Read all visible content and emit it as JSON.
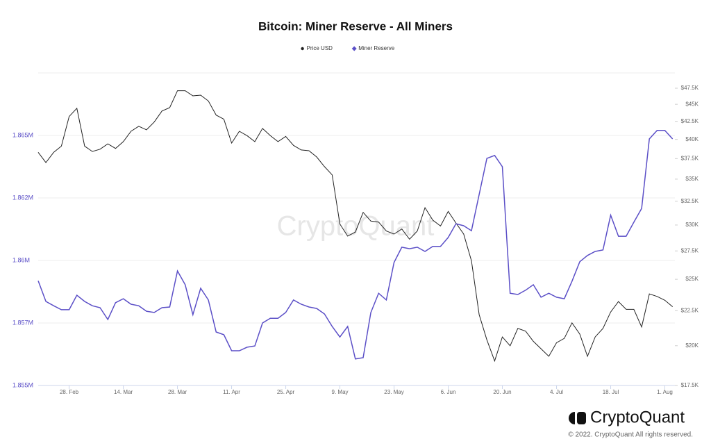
{
  "chart_data": {
    "type": "line",
    "title": "Bitcoin: Miner Reserve - All Miners",
    "categories": [
      null,
      null,
      null,
      null,
      "28. Feb",
      null,
      null,
      null,
      null,
      null,
      null,
      "14. Mar",
      null,
      null,
      null,
      null,
      null,
      null,
      "28. Mar",
      null,
      null,
      null,
      null,
      null,
      null,
      "11. Apr",
      null,
      null,
      null,
      null,
      null,
      null,
      "25. Apr",
      null,
      null,
      null,
      null,
      null,
      null,
      "9. May",
      null,
      null,
      null,
      null,
      null,
      null,
      "23. May",
      null,
      null,
      null,
      null,
      null,
      null,
      "6. Jun",
      null,
      null,
      null,
      null,
      null,
      null,
      "20. Jun",
      null,
      null,
      null,
      null,
      null,
      null,
      "4. Jul",
      null,
      null,
      null,
      null,
      null,
      null,
      "18. Jul",
      null,
      null,
      null,
      null,
      null,
      null,
      "1. Aug",
      null
    ],
    "series": [
      {
        "name": "Price USD",
        "color": "#222222",
        "axis": "y2",
        "marker": "dot",
        "values": [
          38300,
          37000,
          38300,
          39100,
          43200,
          44400,
          39100,
          38400,
          38700,
          39400,
          38800,
          39700,
          41100,
          41800,
          41300,
          42400,
          44000,
          44500,
          47100,
          47100,
          46300,
          46400,
          45500,
          43400,
          42800,
          39500,
          41100,
          40500,
          39700,
          41500,
          40500,
          39700,
          40400,
          39200,
          38600,
          38500,
          37700,
          36500,
          35500,
          30100,
          28900,
          29300,
          31300,
          30400,
          30300,
          29400,
          29100,
          29600,
          28600,
          29400,
          31800,
          30500,
          29900,
          31400,
          30200,
          29100,
          26600,
          22200,
          20400,
          19000,
          20600,
          20000,
          21200,
          21000,
          20300,
          19800,
          19300,
          20200,
          20500,
          21600,
          20800,
          19300,
          20600,
          21200,
          22400,
          23200,
          22600,
          22600,
          21300,
          23800,
          23600,
          23300,
          22800
        ]
      },
      {
        "name": "Miner Reserve",
        "color": "#5b4fc7",
        "axis": "y",
        "marker": "diamond",
        "values": [
          1859190,
          1858360,
          1858190,
          1858030,
          1858030,
          1858610,
          1858360,
          1858190,
          1858110,
          1857640,
          1858310,
          1858470,
          1858250,
          1858190,
          1857970,
          1857920,
          1858110,
          1858140,
          1859580,
          1859030,
          1857830,
          1858890,
          1858420,
          1857140,
          1857030,
          1856390,
          1856390,
          1856530,
          1856580,
          1857500,
          1857690,
          1857690,
          1857920,
          1858420,
          1858250,
          1858140,
          1858080,
          1857860,
          1857360,
          1856940,
          1857360,
          1856060,
          1856110,
          1857920,
          1858690,
          1858420,
          1859920,
          1860530,
          1860470,
          1860530,
          1860360,
          1860560,
          1860560,
          1860920,
          1861470,
          1861390,
          1861190,
          1862640,
          1864080,
          1864200,
          1863750,
          1858690,
          1858640,
          1858810,
          1859030,
          1858530,
          1858690,
          1858530,
          1858470,
          1859170,
          1859950,
          1860200,
          1860360,
          1860420,
          1861810,
          1860970,
          1860970,
          1861530,
          1862080,
          1864860,
          1865200,
          1865200,
          1864860
        ]
      }
    ],
    "ylim": [
      1855000,
      1867500
    ],
    "yticks": [
      {
        "value": 1855000,
        "label": "1.855M"
      },
      {
        "value": 1857500,
        "label": "1.857M"
      },
      {
        "value": 1860000,
        "label": "1.86M"
      },
      {
        "value": 1862500,
        "label": "1.862M"
      },
      {
        "value": 1865000,
        "label": "1.865M"
      }
    ],
    "y2lim": [
      17500,
      50000
    ],
    "y2_scale": "log",
    "y2ticks": [
      {
        "value": 17500,
        "label": "$17.5K"
      },
      {
        "value": 20000,
        "label": "$20K"
      },
      {
        "value": 22500,
        "label": "$22.5K"
      },
      {
        "value": 25000,
        "label": "$25K"
      },
      {
        "value": 27500,
        "label": "$27.5K"
      },
      {
        "value": 30000,
        "label": "$30K"
      },
      {
        "value": 32500,
        "label": "$32.5K"
      },
      {
        "value": 35000,
        "label": "$35K"
      },
      {
        "value": 37500,
        "label": "$37.5K"
      },
      {
        "value": 40000,
        "label": "$40K"
      },
      {
        "value": 42500,
        "label": "$42.5K"
      },
      {
        "value": 45000,
        "label": "$45K"
      },
      {
        "value": 47500,
        "label": "$47.5K"
      }
    ],
    "grid": true,
    "legend": "top"
  },
  "branding": {
    "watermark": "CryptoQuant",
    "logo_text": "CryptoQuant",
    "copyright": "© 2022. CryptoQuant All rights reserved."
  }
}
